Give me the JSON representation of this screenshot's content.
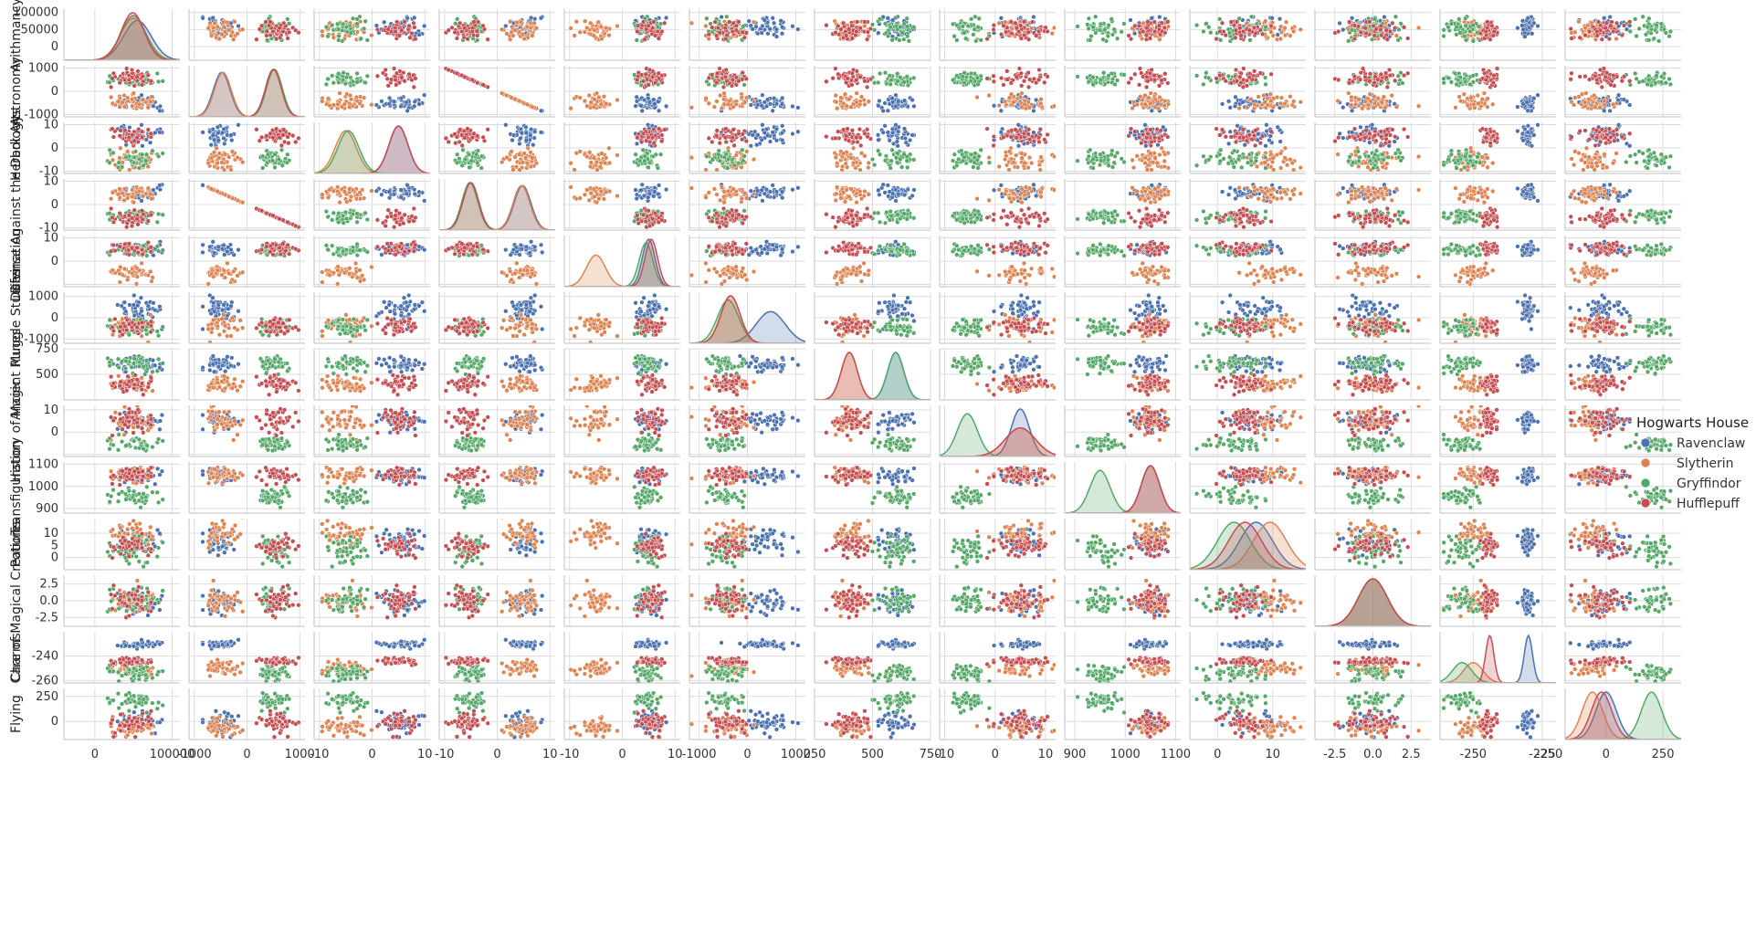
{
  "chart_data": {
    "type": "scatter",
    "subtype": "pairplot",
    "diagonal": "kde",
    "grid": true,
    "legend": {
      "title": "Hogwarts House",
      "placement": "right",
      "entries": [
        {
          "name": "Ravenclaw",
          "color": "#4c72b0"
        },
        {
          "name": "Slytherin",
          "color": "#dd8452"
        },
        {
          "name": "Gryffindor",
          "color": "#55a868"
        },
        {
          "name": "Hufflepuff",
          "color": "#c44e52"
        }
      ]
    },
    "variables": [
      {
        "name": "Arithmancy",
        "label": "Arithmancy",
        "range": [
          -40000,
          110000
        ],
        "ticks": [
          0,
          50000,
          100000
        ],
        "tick_labels_x": [
          "0",
          "100000"
        ],
        "tick_values_x": [
          0,
          100000
        ],
        "tick_labels_y": [
          "0",
          "50000",
          "100000"
        ],
        "stats": {
          "Ravenclaw": [
            55000,
            18000
          ],
          "Slytherin": [
            50000,
            17000
          ],
          "Gryffindor": [
            50000,
            16000
          ],
          "Hufflepuff": [
            49000,
            15000
          ]
        }
      },
      {
        "name": "Astronomy",
        "label": "Astronomy",
        "range": [
          -1100,
          1100
        ],
        "ticks": [
          -1000,
          0,
          1000
        ],
        "tick_labels_x": [
          "-1000",
          "0",
          "1000"
        ],
        "tick_labels_y": [
          "1000",
          "0",
          "-1000"
        ],
        "stats": {
          "Ravenclaw": [
            -480,
            160
          ],
          "Slytherin": [
            -460,
            160
          ],
          "Gryffindor": [
            520,
            150
          ],
          "Hufflepuff": [
            500,
            150
          ]
        }
      },
      {
        "name": "Herbology",
        "label": "Herbology",
        "range": [
          -11,
          11
        ],
        "ticks": [
          -10,
          0,
          10
        ],
        "tick_labels_x": [
          "-10",
          "0",
          "10"
        ],
        "tick_labels_y": [
          "10",
          "0",
          "-10"
        ],
        "stats": {
          "Ravenclaw": [
            5,
            1.8
          ],
          "Slytherin": [
            -5,
            2
          ],
          "Gryffindor": [
            -4.5,
            2
          ],
          "Hufflepuff": [
            5,
            1.8
          ]
        }
      },
      {
        "name": "Defense Against the Dark Arts",
        "label": "Defense Against the Dark Arts",
        "range": [
          -11,
          11
        ],
        "ticks": [
          -10,
          0,
          10
        ],
        "tick_labels_x": [
          "-10",
          "0",
          "10"
        ],
        "tick_labels_y": [
          "10",
          "0",
          "-10"
        ],
        "stats": {
          "Ravenclaw": [
            4.8,
            1.6
          ],
          "Slytherin": [
            4.6,
            1.6
          ],
          "Gryffindor": [
            -5.2,
            1.5
          ],
          "Hufflepuff": [
            -5,
            1.5
          ]
        }
      },
      {
        "name": "Divination",
        "label": "Divination",
        "range": [
          -11,
          11
        ],
        "ticks": [
          -10,
          0,
          10
        ],
        "tick_labels_x": [
          "-10",
          "0",
          "10"
        ],
        "tick_labels_y": [
          "10",
          "0"
        ],
        "stats": {
          "Ravenclaw": [
            5,
            1.2
          ],
          "Slytherin": [
            -5,
            1.8
          ],
          "Gryffindor": [
            4.5,
            1.3
          ],
          "Hufflepuff": [
            5.5,
            1.2
          ]
        }
      },
      {
        "name": "Muggle Studies",
        "label": "Muggle Studies",
        "range": [
          -1200,
          1200
        ],
        "ticks": [
          -1000,
          0,
          1000
        ],
        "tick_labels_x": [
          "-1000",
          "0",
          "1000"
        ],
        "tick_labels_y": [
          "1000",
          "0",
          "-1000"
        ],
        "stats": {
          "Ravenclaw": [
            480,
            300
          ],
          "Slytherin": [
            -350,
            200
          ],
          "Gryffindor": [
            -400,
            220
          ],
          "Hufflepuff": [
            -350,
            200
          ]
        }
      },
      {
        "name": "Ancient Runes",
        "label": "Ancient Runes",
        "range": [
          250,
          750
        ],
        "ticks": [
          250,
          500,
          750
        ],
        "tick_labels_x": [
          "250",
          "500",
          "750"
        ],
        "tick_labels_y": [
          "750",
          "500"
        ],
        "stats": {
          "Ravenclaw": [
            600,
            35
          ],
          "Slytherin": [
            400,
            35
          ],
          "Gryffindor": [
            600,
            35
          ],
          "Hufflepuff": [
            400,
            35
          ]
        }
      },
      {
        "name": "History of Magic",
        "label": "History of Magic",
        "range": [
          -11,
          12
        ],
        "ticks": [
          -10,
          0,
          10
        ],
        "tick_labels_x": [
          "-10",
          "0",
          "10"
        ],
        "tick_labels_y": [
          "10",
          "0"
        ],
        "stats": {
          "Ravenclaw": [
            5,
            1.8
          ],
          "Slytherin": [
            5,
            3
          ],
          "Gryffindor": [
            -5.5,
            2
          ],
          "Hufflepuff": [
            5,
            3
          ]
        }
      },
      {
        "name": "Transfiguration",
        "label": "Transfiguration",
        "range": [
          880,
          1110
        ],
        "ticks": [
          900,
          1000,
          1100
        ],
        "tick_labels_x": [
          "900",
          "1000",
          "1100"
        ],
        "tick_labels_y": [
          "1100",
          "1000",
          "900"
        ],
        "stats": {
          "Ravenclaw": [
            1050,
            18
          ],
          "Slytherin": [
            1050,
            18
          ],
          "Gryffindor": [
            950,
            20
          ],
          "Hufflepuff": [
            1050,
            18
          ]
        }
      },
      {
        "name": "Potions",
        "label": "Potions",
        "range": [
          -5,
          16
        ],
        "ticks": [
          0,
          10
        ],
        "tick_labels_x": [
          "0",
          "10"
        ],
        "tick_labels_y": [
          "10",
          "5",
          "0"
        ],
        "stats": {
          "Ravenclaw": [
            7,
            3
          ],
          "Slytherin": [
            9.5,
            3
          ],
          "Gryffindor": [
            3,
            3
          ],
          "Hufflepuff": [
            5,
            3
          ]
        }
      },
      {
        "name": "Care of Magical Creatures",
        "label": "Care of Magical Creatures",
        "range": [
          -3.8,
          3.8
        ],
        "ticks": [
          -2.5,
          0,
          2.5
        ],
        "tick_labels_x": [
          "-2.5",
          "0.0",
          "2.5"
        ],
        "tick_labels_y": [
          "2.5",
          "0.0",
          "-2.5"
        ],
        "stats": {
          "Ravenclaw": [
            0,
            0.95
          ],
          "Slytherin": [
            0,
            0.95
          ],
          "Gryffindor": [
            0,
            0.95
          ],
          "Hufflepuff": [
            0,
            0.95
          ]
        }
      },
      {
        "name": "Charms",
        "label": "Charms",
        "range": [
          -262,
          -220
        ],
        "ticks": [
          -260,
          -240
        ],
        "tick_labels_x": [
          "-250",
          "-225"
        ],
        "tick_values_x": [
          -250,
          -225
        ],
        "tick_labels_y": [
          "-240",
          "-260"
        ],
        "stats": {
          "Ravenclaw": [
            -230,
            1.5
          ],
          "Slytherin": [
            -250,
            3.5
          ],
          "Gryffindor": [
            -254,
            3.5
          ],
          "Hufflepuff": [
            -244,
            1.5
          ]
        }
      },
      {
        "name": "Flying",
        "label": "Flying",
        "range": [
          -180,
          330
        ],
        "ticks": [
          -250,
          0,
          250
        ],
        "tick_labels_x": [
          "-250",
          "0",
          "250"
        ],
        "tick_values_x": [
          -250,
          0,
          250
        ],
        "tick_labels_y": [
          "250",
          "0"
        ],
        "stats": {
          "Ravenclaw": [
            0,
            45
          ],
          "Slytherin": [
            -60,
            45
          ],
          "Gryffindor": [
            200,
            45
          ],
          "Hufflepuff": [
            -20,
            45
          ]
        }
      }
    ]
  }
}
